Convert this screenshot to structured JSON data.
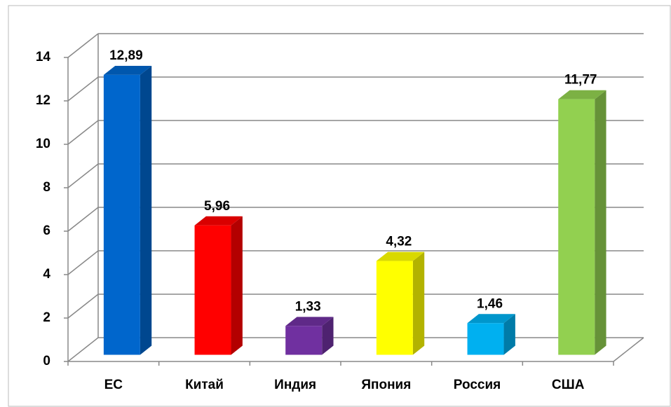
{
  "chart_data": {
    "type": "bar3d",
    "categories": [
      "ЕС",
      "Китай",
      "Индия",
      "Япония",
      "Россия",
      "США"
    ],
    "values": [
      12.89,
      5.96,
      1.33,
      4.32,
      1.46,
      11.77
    ],
    "value_labels": [
      "12,89",
      "5,96",
      "1,33",
      "4,32",
      "1,46",
      "11,77"
    ],
    "colors": [
      "#0066cc",
      "#ff0000",
      "#7030a0",
      "#ffff00",
      "#00b0f0",
      "#92d050"
    ],
    "ylim": [
      0,
      14
    ],
    "yticks": [
      0,
      2,
      4,
      6,
      8,
      10,
      12,
      14
    ],
    "grid": true
  }
}
